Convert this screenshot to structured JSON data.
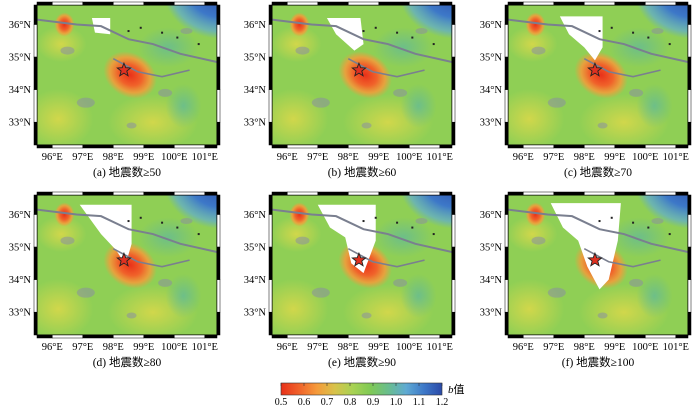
{
  "panels": [
    {
      "label": "(a) 地震数≥50",
      "threshold": 50
    },
    {
      "label": "(b) 地震数≥60",
      "threshold": 60
    },
    {
      "label": "(c) 地震数≥70",
      "threshold": 70
    },
    {
      "label": "(d) 地震数≥80",
      "threshold": 80
    },
    {
      "label": "(e) 地震数≥90",
      "threshold": 90
    },
    {
      "label": "(f) 地震数≥100",
      "threshold": 100
    }
  ],
  "lon_ticks": [
    "96°E",
    "97°E",
    "98°E",
    "99°E",
    "100°E",
    "101°E"
  ],
  "lat_ticks": [
    "36°N",
    "35°N",
    "34°N",
    "33°N"
  ],
  "lon_range": [
    95.5,
    101.4
  ],
  "lat_range": [
    32.3,
    36.6
  ],
  "epicenter": {
    "lon": 98.35,
    "lat": 34.6
  },
  "colorbar": {
    "title_italic": "b",
    "title_rest": "值",
    "ticks": [
      "0.5",
      "0.6",
      "0.7",
      "0.8",
      "0.9",
      "1.0",
      "1.1",
      "1.2"
    ],
    "range": [
      0.5,
      1.2
    ],
    "colors": [
      "#e8311a",
      "#f0622a",
      "#f59a3a",
      "#d8c24a",
      "#a8d253",
      "#7fc955",
      "#69bd8e",
      "#5faad3",
      "#3d78c8",
      "#2b4aa8"
    ]
  }
}
